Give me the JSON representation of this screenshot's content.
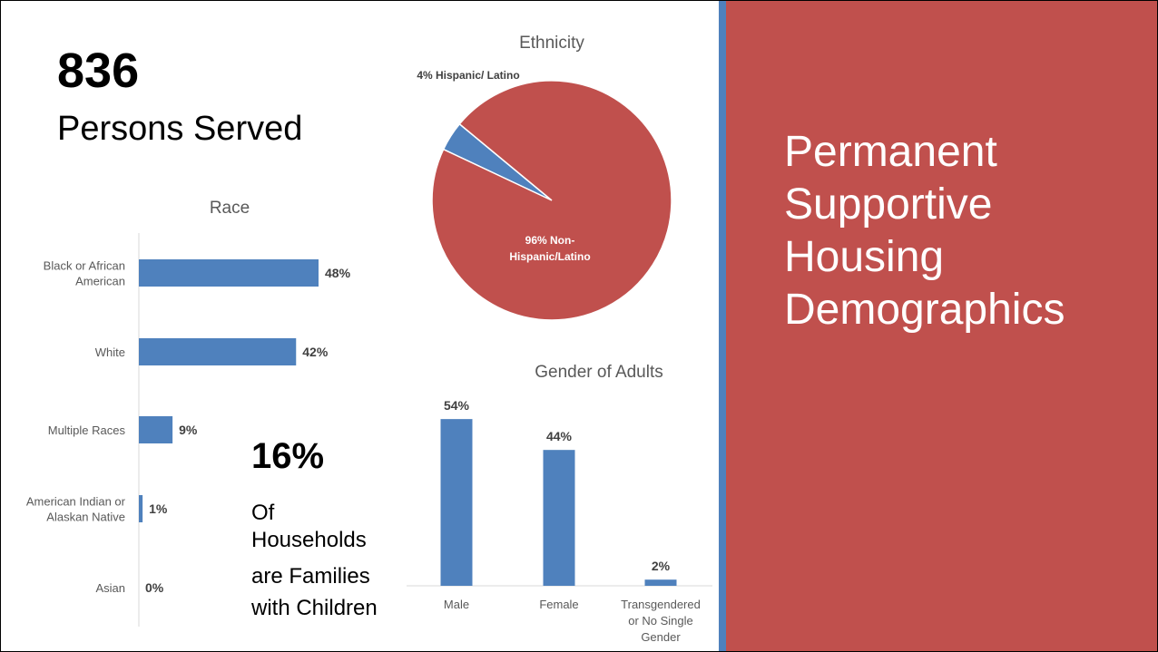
{
  "stat": {
    "value": "836",
    "label": "Persons Served"
  },
  "families": {
    "value": "16%",
    "lines": [
      "Of",
      "Households",
      "are Families",
      "with Children"
    ]
  },
  "panel": {
    "title_lines": [
      "Permanent",
      "Supportive",
      "Housing",
      "Demographics"
    ]
  },
  "colors": {
    "bar": "#4f81bd",
    "pie_main": "#c0504d",
    "pie_minor": "#4f81bd",
    "divider": "#4f81bd",
    "panel": "#c0504d"
  },
  "chart_data": [
    {
      "type": "bar",
      "orientation": "horizontal",
      "title": "Race",
      "categories": [
        [
          "Black or African",
          "American"
        ],
        [
          "White"
        ],
        [
          "Multiple Races"
        ],
        [
          "American Indian or",
          "Alaskan Native"
        ],
        [
          "Asian"
        ]
      ],
      "values": [
        48,
        42,
        9,
        1,
        0
      ],
      "labels": [
        "48%",
        "42%",
        "9%",
        "1%",
        "0%"
      ],
      "xlim": [
        0,
        60
      ],
      "grid": false
    },
    {
      "type": "pie",
      "title": "Ethnicity",
      "slices": [
        {
          "label": "4% Hispanic/ Latino",
          "value": 4
        },
        {
          "label_lines": [
            "96% Non-",
            "Hispanic/Latino"
          ],
          "value": 96
        }
      ]
    },
    {
      "type": "bar",
      "title": "Gender of Adults",
      "categories": [
        [
          "Male"
        ],
        [
          "Female"
        ],
        [
          "Transgendered",
          "or No Single",
          "Gender"
        ]
      ],
      "values": [
        54,
        44,
        2
      ],
      "labels": [
        "54%",
        "44%",
        "2%"
      ],
      "ylim": [
        0,
        60
      ],
      "grid": false
    }
  ]
}
